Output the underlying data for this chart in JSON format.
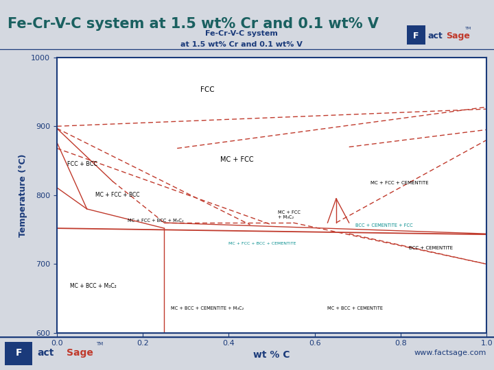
{
  "title_slide": "Fe-Cr-V-C system at 1.5 wt% Cr and 0.1 wt% V",
  "chart_title_line1": "Fe-Cr-V-C system",
  "chart_title_line2": "at 1.5 wt% Cr and 0.1 wt% V",
  "xlabel": "wt % C",
  "ylabel": "Temperature (°C)",
  "xlim": [
    0.0,
    1.0
  ],
  "ylim": [
    600,
    1000
  ],
  "xticks": [
    0.0,
    0.2,
    0.4,
    0.6,
    0.8,
    1.0
  ],
  "yticks": [
    600,
    700,
    800,
    900,
    1000
  ],
  "bg_color": "#ffffff",
  "slide_bg": "#d4d8e0",
  "title_color": "#1a3a7a",
  "chart_title_color": "#1a3a7a",
  "axis_color": "#1a3a7a",
  "line_color": "#c0392b",
  "teal_color": "#008b8b"
}
